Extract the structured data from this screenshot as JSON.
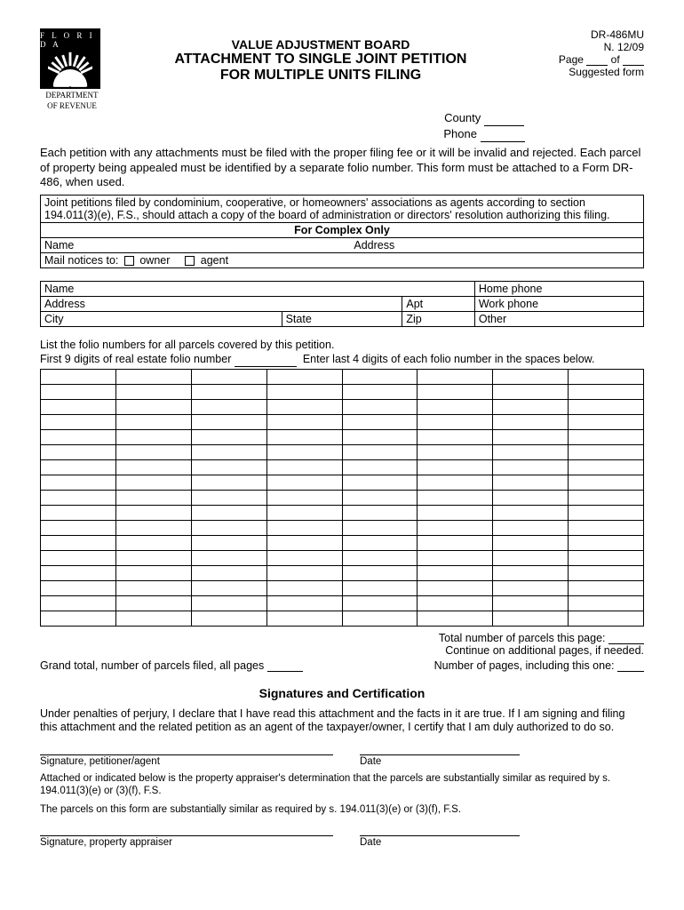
{
  "form_code": "DR-486MU",
  "form_revision": "N. 12/09",
  "page_label_prefix": "Page",
  "page_label_of": "of",
  "suggested_form": "Suggested form",
  "logo": {
    "florida": "F L O R I D A",
    "dept1": "DEPARTMENT",
    "dept2": "OF REVENUE"
  },
  "title": {
    "line1": "VALUE ADJUSTMENT BOARD",
    "line2": "ATTACHMENT TO SINGLE JOINT PETITION",
    "line3": "FOR MULTIPLE UNITS FILING"
  },
  "county_label": "County",
  "phone_label": "Phone",
  "intro_para": "Each petition with any attachments must be filed with the proper filing fee or it will be invalid and rejected. Each parcel of property being appealed must be identified by a separate folio number. This form must be attached to a Form DR-486, when used.",
  "box1": {
    "joint_text": "Joint petitions filed by condominium, cooperative, or homeowners' associations as agents according to section 194.011(3)(e), F.S., should attach a copy of the board of administration or directors' resolution authorizing this filing.",
    "complex_only": "For Complex Only",
    "name": "Name",
    "address": "Address",
    "mail_to": "Mail notices to:",
    "owner": "owner",
    "agent": "agent"
  },
  "tbl2": {
    "name": "Name",
    "home_phone": "Home phone",
    "address": "Address",
    "apt": "Apt",
    "work_phone": "Work phone",
    "city": "City",
    "state": "State",
    "zip": "Zip",
    "other": "Other"
  },
  "folio": {
    "intro1": "List the folio numbers for all parcels covered by this petition.",
    "intro2a": "First 9 digits of real estate folio number",
    "intro2b": "Enter last 4 digits of each folio number in the spaces below.",
    "rows": 17,
    "cols": 8
  },
  "totals": {
    "page_total": "Total number of parcels this page:",
    "continue": "Continue on additional pages, if needed.",
    "grand_total": "Grand total, number of parcels filed, all pages",
    "num_pages": "Number of pages, including this one:"
  },
  "sig": {
    "heading": "Signatures and Certification",
    "declare": "Under penalties of perjury, I declare that I have read this attachment and the facts in it are true. If I am signing and filing this attachment and the related petition as an agent of the taxpayer/owner, I certify that I am duly authorized to do so.",
    "petitioner_label": "Signature, petitioner/agent",
    "date_label": "Date",
    "attached_para": "Attached or indicated below is the property appraiser's determination that the parcels are substantially similar as required by s. 194.011(3)(e) or (3)(f), F.S.",
    "parcels_para": "The parcels on this form are substantially similar as required by s. 194.011(3)(e) or (3)(f), F.S.",
    "appraiser_label": "Signature, property appraiser"
  },
  "colors": {
    "text": "#000000",
    "bg": "#ffffff"
  }
}
